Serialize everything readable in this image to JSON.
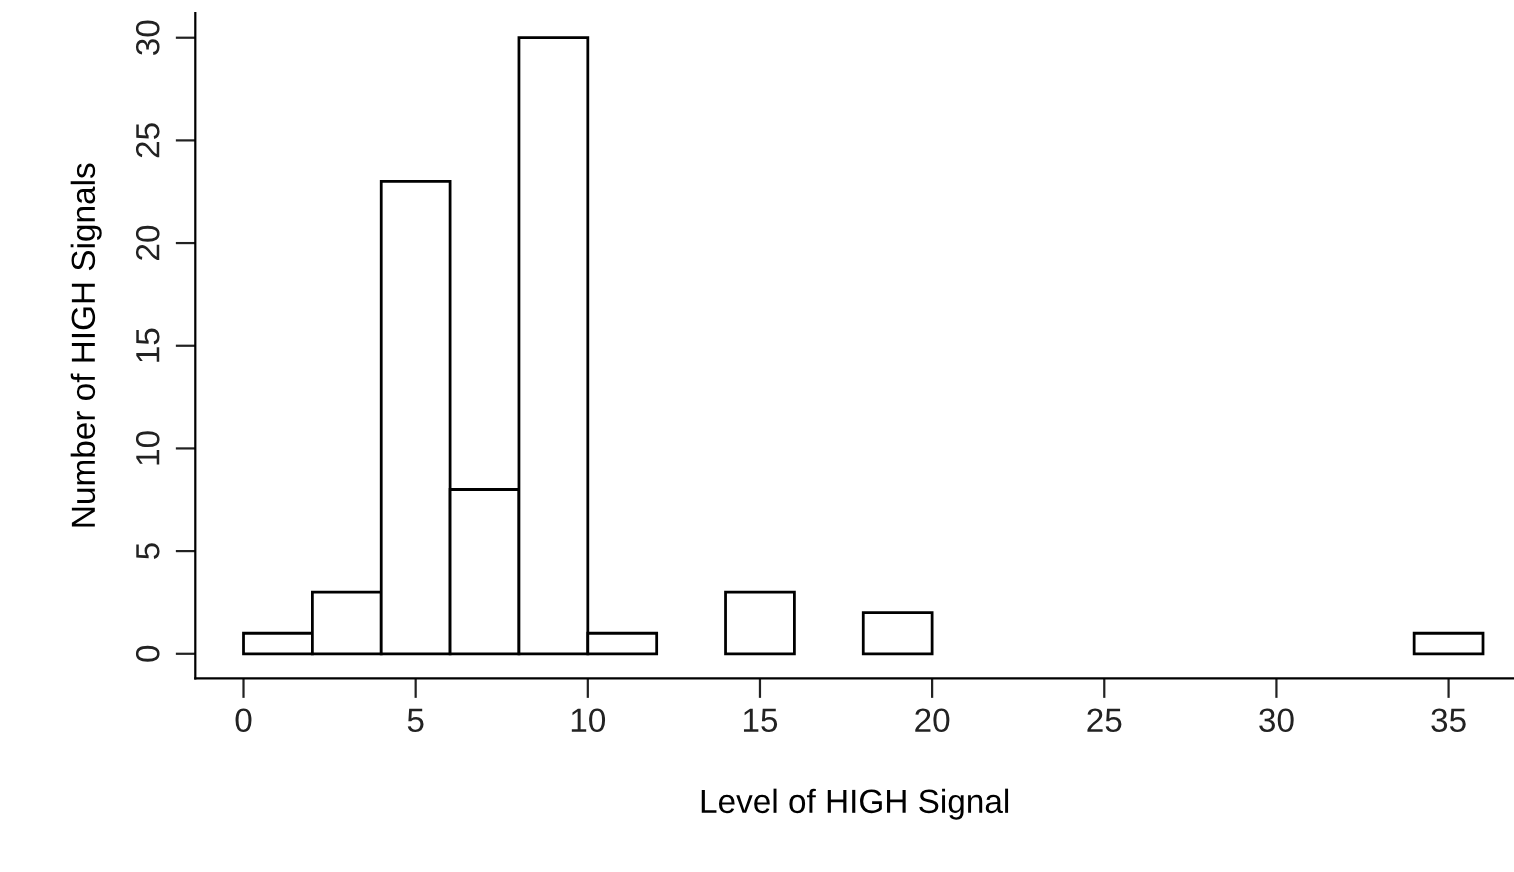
{
  "chart_data": {
    "type": "histogram",
    "xlabel": "Level of HIGH Signal",
    "ylabel": "Number of HIGH Signals",
    "bins": [
      0,
      2,
      4,
      6,
      8,
      10,
      12,
      14,
      16,
      18,
      20,
      22,
      24,
      26,
      28,
      30,
      32,
      34,
      36
    ],
    "values": [
      1,
      3,
      23,
      8,
      30,
      1,
      0,
      3,
      0,
      2,
      0,
      0,
      0,
      0,
      0,
      0,
      0,
      1
    ],
    "color": "#ffffff",
    "xlim": [
      -1.4,
      36.9
    ],
    "ylim": [
      -1.2,
      31.2
    ],
    "xticks": [
      0,
      5,
      10,
      15,
      20,
      25,
      30,
      35
    ],
    "yticks": [
      0,
      5,
      10,
      15,
      20,
      25,
      30
    ],
    "grid": false
  }
}
